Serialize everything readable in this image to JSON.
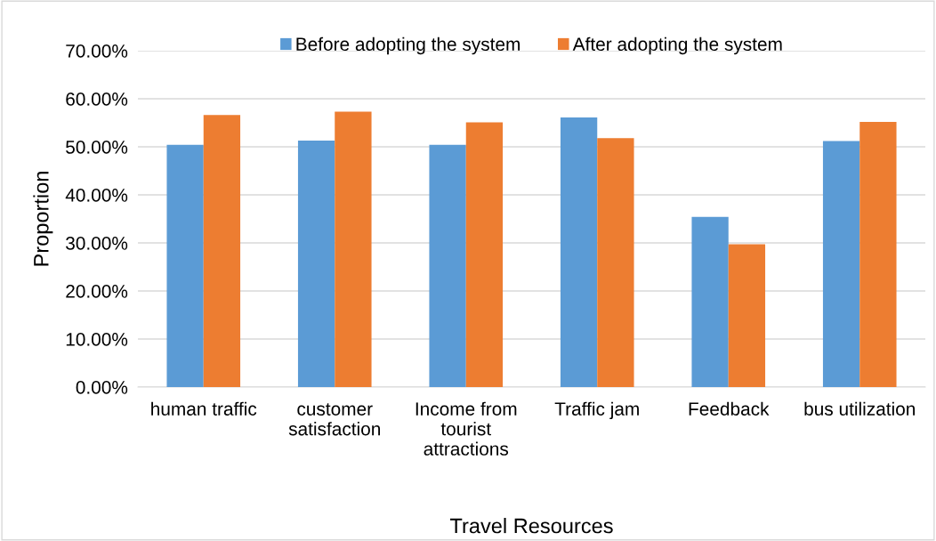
{
  "chart_data": {
    "type": "bar",
    "categories": [
      "human traffic",
      "customer\nsatisfaction",
      "Income from\ntourist\nattractions",
      "Traffic jam",
      "Feedback",
      "bus utilization"
    ],
    "series": [
      {
        "name": "Before adopting the system",
        "color": "#5b9bd5",
        "values": [
          50.4,
          51.3,
          50.4,
          56.1,
          35.4,
          51.2
        ]
      },
      {
        "name": "After adopting the system",
        "color": "#ed7d31",
        "values": [
          56.6,
          57.3,
          55.1,
          51.8,
          29.7,
          55.2
        ]
      }
    ],
    "xlabel": "Travel Resources",
    "ylabel": "Proportion",
    "ylim": [
      0,
      70
    ],
    "yticks": [
      {
        "value": 0,
        "label": "0.00%"
      },
      {
        "value": 10,
        "label": "10.00%"
      },
      {
        "value": 20,
        "label": "20.00%"
      },
      {
        "value": 30,
        "label": "30.00%"
      },
      {
        "value": 40,
        "label": "40.00%"
      },
      {
        "value": 50,
        "label": "50.00%"
      },
      {
        "value": 60,
        "label": "60.00%"
      },
      {
        "value": 70,
        "label": "70.00%"
      }
    ],
    "grid": "y",
    "legend": "top"
  }
}
